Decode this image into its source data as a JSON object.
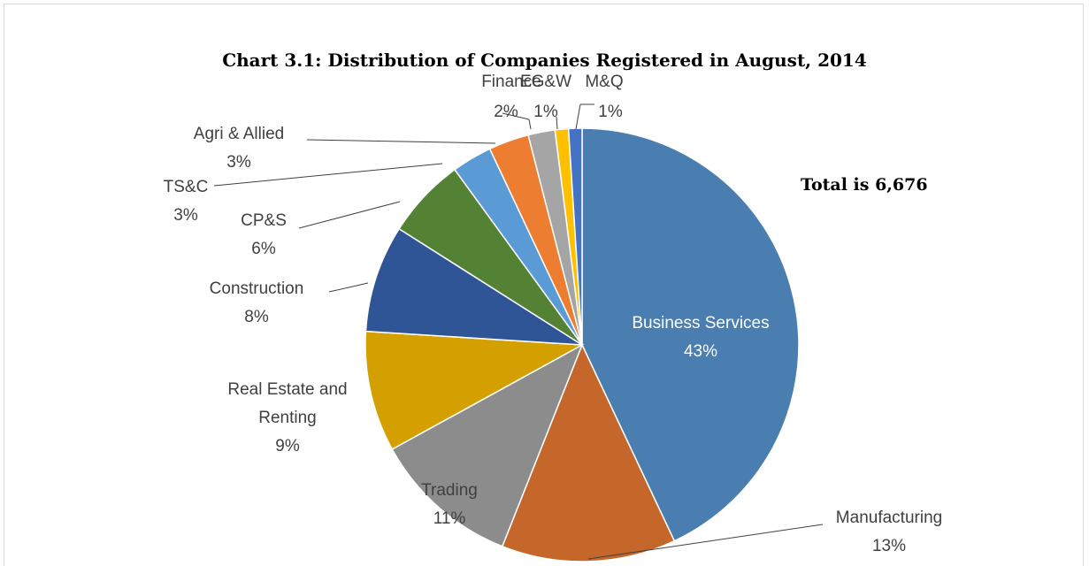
{
  "chart_data": {
    "type": "pie",
    "title": "Chart 3.1: Distribution of Companies Registered in August, 2014",
    "annotation": "Total is 6,676",
    "categories": [
      "Business Services",
      "Manufacturing",
      "Trading",
      "Real Estate and Renting",
      "Construction",
      "CP&S",
      "TS&C",
      "Agri & Allied",
      "Finance",
      "EG&W",
      "M&Q"
    ],
    "values": [
      43,
      13,
      11,
      9,
      8,
      6,
      3,
      3,
      2,
      1,
      1
    ],
    "value_labels": [
      "43%",
      "13%",
      "11%",
      "9%",
      "8%",
      "6%",
      "3%",
      "3%",
      "2%",
      "1%",
      "1%"
    ],
    "colors": [
      "#4a7eb0",
      "#c5662a",
      "#8c8c8c",
      "#d4a000",
      "#2f5597",
      "#548235",
      "#5b9bd5",
      "#ed7d31",
      "#a5a5a5",
      "#ffc000",
      "#4472c4"
    ]
  }
}
